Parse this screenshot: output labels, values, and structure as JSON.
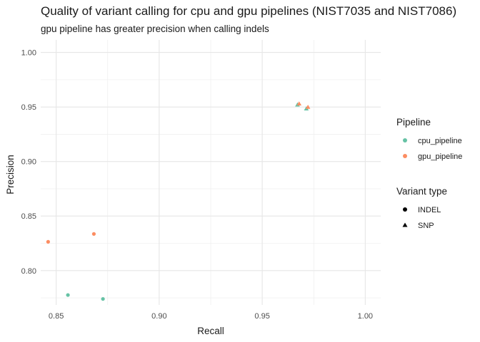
{
  "chart_data": {
    "type": "scatter",
    "title": "Quality of variant calling for cpu and gpu pipelines (NIST7035 and NIST7086)",
    "subtitle": "gpu pipeline has greater precision when calling indels",
    "xlabel": "Recall",
    "ylabel": "Precision",
    "xlim": [
      0.8425,
      1.0075
    ],
    "ylim": [
      0.7685,
      1.0115
    ],
    "x_ticks": [
      "0.85",
      "0.90",
      "0.95",
      "1.00"
    ],
    "x_tick_values": [
      0.85,
      0.9,
      0.95,
      1.0
    ],
    "y_ticks": [
      "0.80",
      "0.85",
      "0.90",
      "0.95",
      "1.00"
    ],
    "y_tick_values": [
      0.8,
      0.85,
      0.9,
      0.95,
      1.0
    ],
    "grid": true,
    "legend_position": "right",
    "color_legend": {
      "title": "Pipeline",
      "entries": [
        {
          "label": "cpu_pipeline",
          "color": "#66c2a5"
        },
        {
          "label": "gpu_pipeline",
          "color": "#fc8d62"
        }
      ]
    },
    "shape_legend": {
      "title": "Variant type",
      "entries": [
        {
          "label": "INDEL",
          "shape": "circle"
        },
        {
          "label": "SNP",
          "shape": "triangle"
        }
      ]
    },
    "series": [
      {
        "pipeline": "cpu_pipeline",
        "points": [
          {
            "x": 0.8557,
            "y": 0.7776,
            "type": "INDEL"
          },
          {
            "x": 0.8727,
            "y": 0.774,
            "type": "INDEL"
          },
          {
            "x": 0.9671,
            "y": 0.9519,
            "type": "SNP"
          },
          {
            "x": 0.9714,
            "y": 0.9483,
            "type": "SNP"
          }
        ]
      },
      {
        "pipeline": "gpu_pipeline",
        "points": [
          {
            "x": 0.8461,
            "y": 0.8264,
            "type": "INDEL"
          },
          {
            "x": 0.8683,
            "y": 0.8336,
            "type": "INDEL"
          },
          {
            "x": 0.9679,
            "y": 0.9528,
            "type": "SNP"
          },
          {
            "x": 0.9722,
            "y": 0.9497,
            "type": "SNP"
          }
        ]
      }
    ]
  }
}
